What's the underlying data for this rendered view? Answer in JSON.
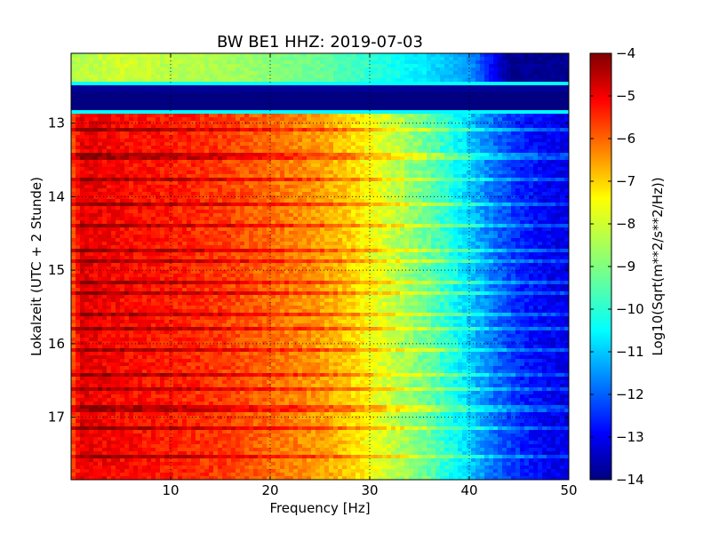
{
  "chart_data": {
    "type": "heatmap",
    "title": "BW BE1 HHZ: 2019-07-03",
    "xlabel": "Frequency [Hz]",
    "ylabel": "Lokalzeit (UTC + 2 Stunde)",
    "colorbar_label": "Log10(Sqrt(m**2/s**2/Hz))",
    "xlim": [
      0,
      50
    ],
    "ylim": [
      12.05,
      17.85
    ],
    "y_inverted": true,
    "clim": [
      -14,
      -4
    ],
    "colormap": "jet",
    "grid": true,
    "grid_style": "dotted",
    "x_ticks": [
      {
        "value": 10,
        "label": "10"
      },
      {
        "value": 20,
        "label": "20"
      },
      {
        "value": 30,
        "label": "30"
      },
      {
        "value": 40,
        "label": "40"
      },
      {
        "value": 50,
        "label": "50"
      }
    ],
    "y_ticks": [
      {
        "value": 13,
        "label": "13"
      },
      {
        "value": 14,
        "label": "14"
      },
      {
        "value": 15,
        "label": "15"
      },
      {
        "value": 16,
        "label": "16"
      },
      {
        "value": 17,
        "label": "17"
      }
    ],
    "colorbar_ticks": [
      {
        "value": -4,
        "label": "−4"
      },
      {
        "value": -5,
        "label": "−5"
      },
      {
        "value": -6,
        "label": "−6"
      },
      {
        "value": -7,
        "label": "−7"
      },
      {
        "value": -8,
        "label": "−8"
      },
      {
        "value": -9,
        "label": "−9"
      },
      {
        "value": -10,
        "label": "−10"
      },
      {
        "value": -11,
        "label": "−11"
      },
      {
        "value": -12,
        "label": "−12"
      },
      {
        "value": -13,
        "label": "−13"
      },
      {
        "value": -14,
        "label": "−14"
      }
    ],
    "spectrum_profile": [
      {
        "freq": 0.0,
        "value": -6.2
      },
      {
        "freq": 1.0,
        "value": -5.0
      },
      {
        "freq": 5.0,
        "value": -5.3
      },
      {
        "freq": 10.0,
        "value": -5.5
      },
      {
        "freq": 15.0,
        "value": -5.8
      },
      {
        "freq": 20.0,
        "value": -6.3
      },
      {
        "freq": 25.0,
        "value": -6.8
      },
      {
        "freq": 28.0,
        "value": -7.3
      },
      {
        "freq": 30.0,
        "value": -7.8
      },
      {
        "freq": 33.0,
        "value": -8.5
      },
      {
        "freq": 36.0,
        "value": -9.3
      },
      {
        "freq": 39.0,
        "value": -10.3
      },
      {
        "freq": 42.0,
        "value": -11.5
      },
      {
        "freq": 45.0,
        "value": -12.4
      },
      {
        "freq": 48.0,
        "value": -12.9
      },
      {
        "freq": 50.0,
        "value": -13.0
      }
    ],
    "quiet_profile": [
      {
        "freq": 0.0,
        "value": -8.5
      },
      {
        "freq": 5.0,
        "value": -8.2
      },
      {
        "freq": 15.0,
        "value": -8.6
      },
      {
        "freq": 25.0,
        "value": -9.2
      },
      {
        "freq": 35.0,
        "value": -10.4
      },
      {
        "freq": 40.0,
        "value": -11.2
      },
      {
        "freq": 42.0,
        "value": -12.5
      },
      {
        "freq": 44.0,
        "value": -13.8
      },
      {
        "freq": 50.0,
        "value": -13.9
      }
    ],
    "segments": [
      {
        "from_time": 12.05,
        "to_time": 12.45,
        "level": "quiet"
      },
      {
        "from_time": 12.45,
        "to_time": 12.49,
        "level": "transition",
        "value": -10.2
      },
      {
        "from_time": 12.49,
        "to_time": 12.58,
        "level": "gap",
        "value": -13.8
      },
      {
        "from_time": 12.58,
        "to_time": 12.6,
        "level": "gap",
        "value": -14.0
      },
      {
        "from_time": 12.6,
        "to_time": 12.82,
        "level": "gap",
        "value": -14.0
      },
      {
        "from_time": 12.82,
        "to_time": 12.86,
        "level": "transition",
        "value": -10.3
      },
      {
        "from_time": 12.86,
        "to_time": 17.85,
        "level": "active"
      }
    ],
    "bright_lines_hours": [
      13.1,
      13.45,
      13.75,
      14.1,
      14.38,
      14.72,
      14.86,
      15.15,
      15.33,
      15.62,
      15.8,
      16.08,
      16.42,
      16.62,
      16.88,
      17.15,
      17.55
    ]
  }
}
